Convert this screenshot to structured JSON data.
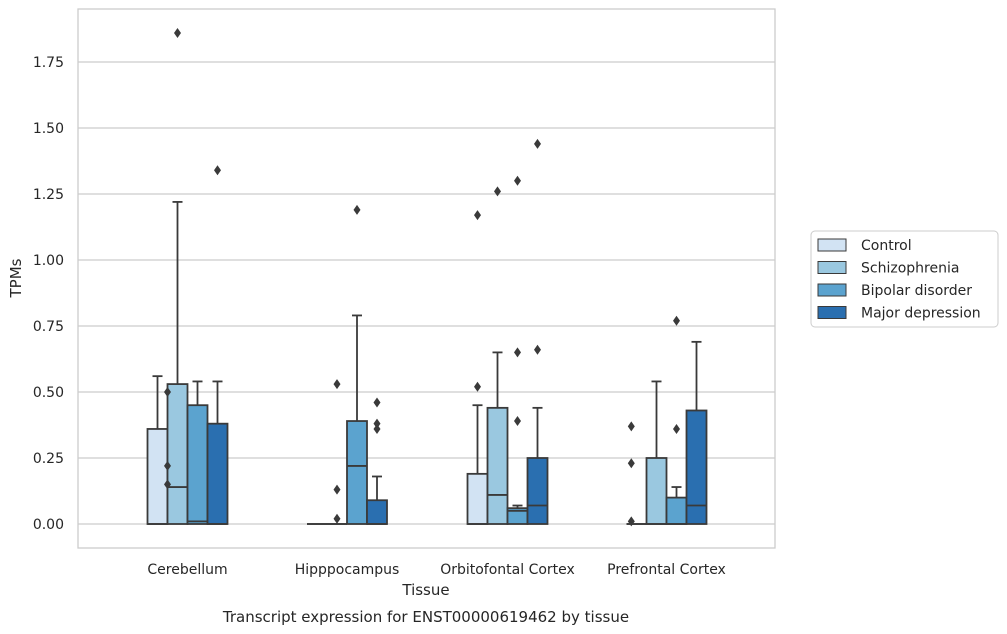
{
  "chart_data": {
    "type": "box",
    "xlabel": "Tissue",
    "ylabel": "TPMs",
    "caption": "Transcript expression for ENST00000619462 by tissue",
    "ylim": [
      -0.09,
      1.97
    ],
    "yticks": [
      "0.00",
      "0.25",
      "0.50",
      "0.75",
      "1.00",
      "1.25",
      "1.50",
      "1.75"
    ],
    "grid": "horizontal",
    "legend_position": "right",
    "categories": [
      "Cerebellum",
      "Hipppocampus",
      "Orbitofontal Cortex",
      "Prefrontal Cortex"
    ],
    "series": [
      {
        "name": "Control",
        "color": "#d2e3f3",
        "boxes": [
          {
            "q1": 0.0,
            "median": 0.0,
            "q3": 0.36,
            "whislo": 0.0,
            "whishi": 0.56,
            "fliers": []
          },
          {
            "q1": 0.0,
            "median": 0.0,
            "q3": 0.0,
            "whislo": 0.0,
            "whishi": 0.0,
            "fliers": []
          },
          {
            "q1": 0.0,
            "median": 0.0,
            "q3": 0.19,
            "whislo": 0.0,
            "whishi": 0.45,
            "fliers": [
              0.52,
              1.17
            ]
          },
          {
            "q1": 0.0,
            "median": 0.0,
            "q3": 0.0,
            "whislo": 0.0,
            "whishi": 0.0,
            "fliers": []
          }
        ]
      },
      {
        "name": "Schizophrenia",
        "color": "#9ac8e0",
        "boxes": [
          {
            "q1": 0.0,
            "median": 0.14,
            "q3": 0.53,
            "whislo": 0.0,
            "whishi": 1.22,
            "fliers": [
              1.86
            ]
          },
          {
            "q1": 0.0,
            "median": 0.0,
            "q3": 0.0,
            "whislo": 0.0,
            "whishi": 0.0,
            "fliers": [
              0.02,
              0.13,
              0.53
            ]
          },
          {
            "q1": 0.0,
            "median": 0.11,
            "q3": 0.44,
            "whislo": 0.0,
            "whishi": 0.65,
            "fliers": [
              1.26
            ]
          },
          {
            "q1": 0.0,
            "median": 0.0,
            "q3": 0.25,
            "whislo": 0.0,
            "whishi": 0.54,
            "fliers": []
          }
        ]
      },
      {
        "name": "Bipolar disorder",
        "color": "#5ba3cf",
        "boxes": [
          {
            "q1": 0.0,
            "median": 0.01,
            "q3": 0.45,
            "whislo": 0.0,
            "whishi": 0.54,
            "fliers": []
          },
          {
            "q1": 0.0,
            "median": 0.22,
            "q3": 0.39,
            "whislo": 0.0,
            "whishi": 0.79,
            "fliers": [
              1.19
            ]
          },
          {
            "q1": 0.0,
            "median": 0.05,
            "q3": 0.06,
            "whislo": 0.0,
            "whishi": 0.07,
            "fliers": [
              0.39,
              0.65,
              1.3
            ]
          },
          {
            "q1": 0.0,
            "median": 0.0,
            "q3": 0.1,
            "whislo": 0.0,
            "whishi": 0.14,
            "fliers": [
              0.36,
              0.77
            ]
          }
        ]
      },
      {
        "name": "Major depression",
        "color": "#2a6fb0",
        "boxes": [
          {
            "q1": 0.0,
            "median": 0.0,
            "q3": 0.38,
            "whislo": 0.0,
            "whishi": 0.54,
            "fliers": [
              1.34
            ]
          },
          {
            "q1": 0.0,
            "median": 0.0,
            "q3": 0.09,
            "whislo": 0.0,
            "whishi": 0.18,
            "fliers": [
              0.36,
              0.38,
              0.46
            ]
          },
          {
            "q1": 0.0,
            "median": 0.07,
            "q3": 0.25,
            "whislo": 0.0,
            "whishi": 0.44,
            "fliers": [
              0.66,
              1.44
            ]
          },
          {
            "q1": 0.0,
            "median": 0.07,
            "q3": 0.43,
            "whislo": 0.0,
            "whishi": 0.69,
            "fliers": []
          }
        ]
      }
    ],
    "extra_fliers": [
      {
        "category": 0,
        "x_offset": -0.25,
        "values": [
          0.5,
          0.22,
          0.15
        ]
      },
      {
        "category": 3,
        "x_offset": -0.44,
        "values": [
          0.37,
          0.23,
          0.01
        ]
      }
    ]
  }
}
